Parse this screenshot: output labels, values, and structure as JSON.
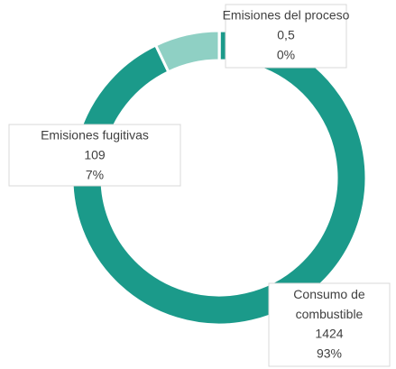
{
  "chart_data": {
    "type": "donut",
    "categories": [
      "Emisiones del proceso",
      "Consumo de combustible",
      "Emisiones fugitivas"
    ],
    "values": [
      0.5,
      1424,
      109
    ],
    "value_labels": [
      "0,5",
      "1424",
      "109"
    ],
    "percent_labels": [
      "0%",
      "93%",
      "7%"
    ],
    "colors": [
      "#5fb8aa",
      "#1b9a8a",
      "#8fd0c4"
    ]
  }
}
